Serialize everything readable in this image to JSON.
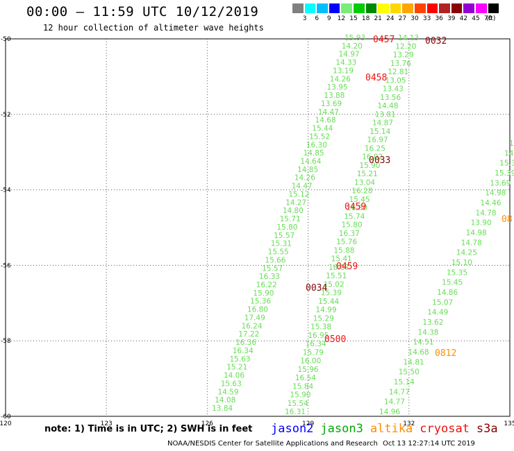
{
  "header": {
    "title": "00:00 – 11:59 UTC 10/12/2019",
    "subtitle": "12 hour collection of altimeter wave heights"
  },
  "legend": {
    "unit": "(ft)",
    "bins": [
      {
        "label": "3",
        "color": "#808080"
      },
      {
        "label": "6",
        "color": "#00ffff"
      },
      {
        "label": "9",
        "color": "#00bfff"
      },
      {
        "label": "12",
        "color": "#0000ff"
      },
      {
        "label": "15",
        "color": "#77ee77"
      },
      {
        "label": "18",
        "color": "#00cc00"
      },
      {
        "label": "21",
        "color": "#008800"
      },
      {
        "label": "24",
        "color": "#ffff00"
      },
      {
        "label": "27",
        "color": "#ffd700"
      },
      {
        "label": "30",
        "color": "#ffa500"
      },
      {
        "label": "33",
        "color": "#ff4500"
      },
      {
        "label": "36",
        "color": "#ff0000"
      },
      {
        "label": "39",
        "color": "#b22222"
      },
      {
        "label": "42",
        "color": "#8b0000"
      },
      {
        "label": "45",
        "color": "#9400d3"
      },
      {
        "label": "70",
        "color": "#ff00ff"
      },
      {
        "label": "",
        "color": "#000000"
      }
    ]
  },
  "map": {
    "lon_ticks": [
      "120",
      "123",
      "126",
      "129",
      "132",
      "135"
    ],
    "lat_ticks": [
      "-50",
      "-52",
      "-54",
      "-56",
      "-58",
      "-60"
    ],
    "lon_range": [
      120,
      135
    ],
    "lat_range": [
      -60,
      -50
    ]
  },
  "tracks": [
    {
      "name": "track-a",
      "color": "#66dd55",
      "start": [
        496,
        58
      ],
      "end": [
        305,
        592
      ],
      "values": [
        "15.93",
        "14.20",
        "14.97",
        "14.33",
        "13.19",
        "14.26",
        "13.95",
        "13.88",
        "13.69",
        "14.47",
        "14.68",
        "15.44",
        "15.52",
        "16.30",
        "14.85",
        "14.64",
        "14.85",
        "14.26",
        "14.47",
        "15.12",
        "14.27",
        "14.80",
        "15.71",
        "15.80",
        "15.57",
        "15.31",
        "15.55",
        "15.66",
        "15.57",
        "16.33",
        "16.22",
        "15.90",
        "15.36",
        "16.80",
        "17.49",
        "16.24",
        "17.22",
        "16.36",
        "16.34",
        "15.63",
        "15.21",
        "14.06",
        "15.63",
        "14.59",
        "14.08",
        "13.84"
      ]
    },
    {
      "name": "track-b",
      "color": "#66dd55",
      "start": [
        573,
        58
      ],
      "end": [
        410,
        597
      ],
      "values": [
        "14.13",
        "12.20",
        "13.29",
        "13.76",
        "12.81",
        "13.05",
        "13.43",
        "13.56",
        "14.48",
        "13.81",
        "14.87",
        "15.14",
        "16.97",
        "16.25",
        "16.02",
        "15.90",
        "15.21",
        "13.04",
        "16.28",
        "15.45",
        "16.80",
        "15.74",
        "15.80",
        "16.37",
        "15.76",
        "15.88",
        "15.41",
        "16.07",
        "15.51",
        "15.02",
        "15.39",
        "15.44",
        "14.99",
        "15.29",
        "15.38",
        "16.95",
        "16.34",
        "15.79",
        "16.00",
        "15.96",
        "16.54",
        "15.84",
        "15.90",
        "15.54",
        "16.31"
      ]
    },
    {
      "name": "track-c",
      "color": "#66dd55",
      "start": [
        733,
        210
      ],
      "end": [
        546,
        597
      ],
      "values": [
        "15.",
        "14.",
        "15.30",
        "15.39",
        "13.69",
        "14.98",
        "14.46",
        "14.78",
        "13.90",
        "14.98",
        "14.78",
        "14.25",
        "15.10",
        "15.35",
        "15.45",
        "14.86",
        "15.07",
        "14.49",
        "13.62",
        "14.38",
        "14.51",
        "14.68",
        "14.81",
        "15.50",
        "15.14",
        "14.77",
        "14.77",
        "14.96"
      ]
    }
  ],
  "time_labels": [
    {
      "text": "0457",
      "color": "#ee1111"
    },
    {
      "text": "0032",
      "color": "#880000"
    },
    {
      "text": "0458",
      "color": "#ee1111"
    },
    {
      "text": "0033",
      "color": "#880000"
    },
    {
      "text": "0459",
      "color": "#ee1111"
    },
    {
      "text": "0459",
      "color": "#ee1111"
    },
    {
      "text": "0034",
      "color": "#880000"
    },
    {
      "text": "0500",
      "color": "#ee1111"
    },
    {
      "text": "0812",
      "color": "#ff8c00"
    },
    {
      "text": "08",
      "color": "#ff8c00"
    }
  ],
  "footer": {
    "note": "note: 1) Time is in UTC; 2) SWH is in feet",
    "satellites": [
      {
        "name": "jason2",
        "color": "#0000ff"
      },
      {
        "name": "jason3",
        "color": "#00aa00"
      },
      {
        "name": "altika",
        "color": "#ff8c00"
      },
      {
        "name": "cryosat",
        "color": "#ee1111"
      },
      {
        "name": "s3a",
        "color": "#880000"
      }
    ],
    "credit": "NOAA/NESDIS Center for Satellite Applications and Research",
    "timestamp": "Oct 13 12:27:14 UTC 2019"
  }
}
